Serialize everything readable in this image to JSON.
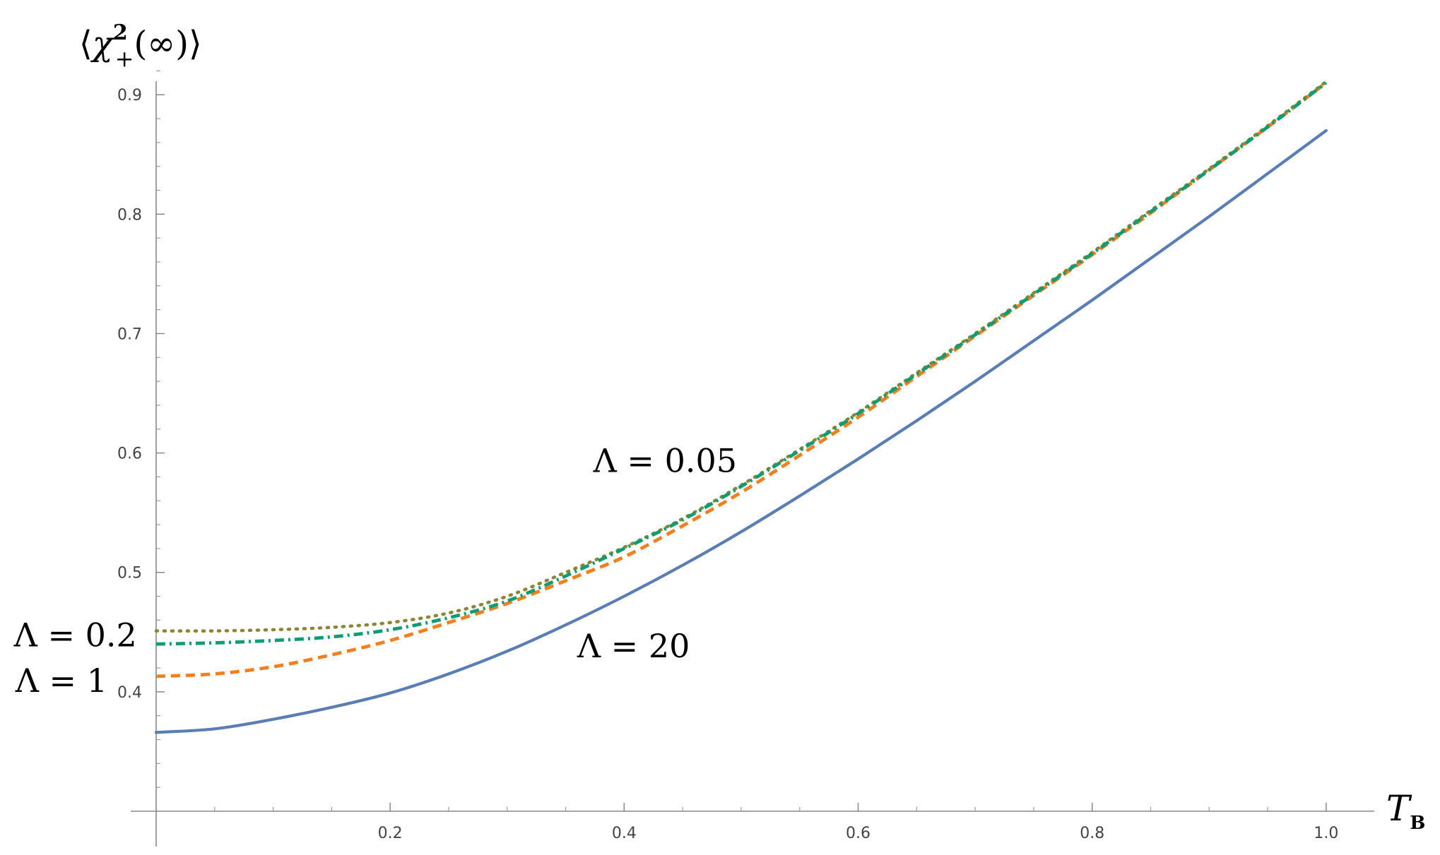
{
  "chart_data": {
    "type": "line",
    "title": "",
    "xlabel": "T",
    "xlabel_subscript": "B",
    "ylabel": {
      "open": "⟨",
      "symbol": "χ",
      "sup": "2",
      "sub": "+",
      "arg": "(∞)",
      "close": "⟩"
    },
    "xlim": [
      0,
      1.02
    ],
    "ylim": [
      0.3,
      0.935
    ],
    "x_ticks": [
      {
        "value": 0.2,
        "label": "0.2"
      },
      {
        "value": 0.4,
        "label": "0.4"
      },
      {
        "value": 0.6,
        "label": "0.6"
      },
      {
        "value": 0.8,
        "label": "0.8"
      },
      {
        "value": 1.0,
        "label": "1.0"
      }
    ],
    "y_ticks": [
      {
        "value": 0.4,
        "label": "0.4"
      },
      {
        "value": 0.5,
        "label": "0.5"
      },
      {
        "value": 0.6,
        "label": "0.6"
      },
      {
        "value": 0.7,
        "label": "0.7"
      },
      {
        "value": 0.8,
        "label": "0.8"
      },
      {
        "value": 0.9,
        "label": "0.9"
      }
    ],
    "x_minor_step": 0.05,
    "y_minor_step": 0.02,
    "grid": false,
    "series": [
      {
        "style": "dotted",
        "color": "#8b8535",
        "x": [
          0,
          0.05,
          0.1,
          0.15,
          0.2,
          0.25,
          0.3,
          0.35,
          0.4,
          0.45,
          0.5,
          0.55,
          0.6,
          0.65,
          0.7,
          0.75,
          0.8,
          0.85,
          0.9,
          0.95,
          1.0
        ],
        "y": [
          0.451,
          0.451,
          0.452,
          0.454,
          0.458,
          0.466,
          0.48,
          0.5,
          0.521,
          0.545,
          0.573,
          0.603,
          0.634,
          0.667,
          0.7,
          0.734,
          0.768,
          0.803,
          0.838,
          0.874,
          0.911
        ]
      },
      {
        "style": "dashdot",
        "color": "#109c71",
        "x": [
          0,
          0.05,
          0.1,
          0.15,
          0.2,
          0.25,
          0.3,
          0.35,
          0.4,
          0.45,
          0.5,
          0.55,
          0.6,
          0.65,
          0.7,
          0.75,
          0.8,
          0.85,
          0.9,
          0.95,
          1.0
        ],
        "y": [
          0.44,
          0.441,
          0.443,
          0.446,
          0.452,
          0.462,
          0.476,
          0.497,
          0.52,
          0.544,
          0.572,
          0.602,
          0.633,
          0.666,
          0.699,
          0.733,
          0.767,
          0.802,
          0.837,
          0.873,
          0.91
        ]
      },
      {
        "style": "dashed",
        "color": "#f47f1f",
        "x": [
          0,
          0.05,
          0.1,
          0.15,
          0.2,
          0.25,
          0.3,
          0.35,
          0.4,
          0.45,
          0.5,
          0.55,
          0.6,
          0.65,
          0.7,
          0.75,
          0.8,
          0.85,
          0.9,
          0.95,
          1.0
        ],
        "y": [
          0.413,
          0.415,
          0.421,
          0.431,
          0.443,
          0.458,
          0.474,
          0.493,
          0.513,
          0.539,
          0.567,
          0.598,
          0.63,
          0.664,
          0.698,
          0.732,
          0.766,
          0.801,
          0.837,
          0.873,
          0.91
        ]
      },
      {
        "style": "solid",
        "color": "#5a7db6",
        "x": [
          0,
          0.05,
          0.1,
          0.15,
          0.2,
          0.25,
          0.3,
          0.35,
          0.4,
          0.45,
          0.5,
          0.55,
          0.6,
          0.65,
          0.7,
          0.75,
          0.8,
          0.85,
          0.9,
          0.95,
          1.0
        ],
        "y": [
          0.366,
          0.369,
          0.377,
          0.387,
          0.399,
          0.415,
          0.434,
          0.456,
          0.48,
          0.506,
          0.534,
          0.564,
          0.595,
          0.627,
          0.66,
          0.694,
          0.728,
          0.763,
          0.798,
          0.834,
          0.87
        ]
      }
    ],
    "annotations": [
      {
        "text": "Λ = 0.05",
        "x": 0.435,
        "y": 0.584,
        "anchor": "middle"
      },
      {
        "text": "Λ = 0.2",
        "x": -0.069,
        "y": 0.438,
        "anchor": "middle"
      },
      {
        "text": "Λ = 1",
        "x": -0.081,
        "y": 0.4,
        "anchor": "middle"
      },
      {
        "text": "Λ = 20",
        "x": 0.408,
        "y": 0.429,
        "anchor": "middle"
      }
    ]
  }
}
